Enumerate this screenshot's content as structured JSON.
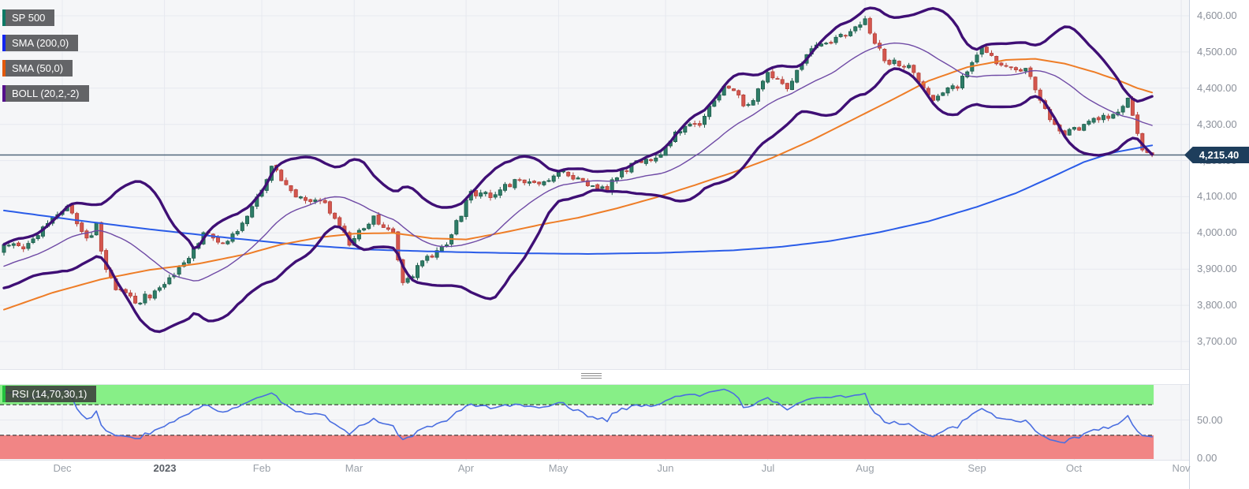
{
  "legend": {
    "items": [
      {
        "id": "sp500",
        "label": "SP 500",
        "color": "#0d7a66"
      },
      {
        "id": "sma200",
        "label": "SMA (200,0)",
        "color": "#1326f0"
      },
      {
        "id": "sma50",
        "label": "SMA (50,0)",
        "color": "#e2590a"
      },
      {
        "id": "boll",
        "label": "BOLL (20,2,-2)",
        "color": "#55108d"
      }
    ]
  },
  "rsi_legend": {
    "label": "RSI (14,70,30,1)",
    "color": "#23c13e"
  },
  "price_tag": {
    "label": "4,215.40",
    "value": 4215.4
  },
  "chart_data": {
    "type": "candlestick",
    "symbol": "SP 500",
    "timeframe": "daily",
    "indicators": [
      "SMA (200,0)",
      "SMA (50,0)",
      "BOLL (20,2,-2)",
      "RSI (14,70,30,1)"
    ],
    "x_axis": {
      "months": [
        {
          "label": "Dec",
          "d": 12
        },
        {
          "label": "2023",
          "d": 33,
          "bold": true
        },
        {
          "label": "Feb",
          "d": 53
        },
        {
          "label": "Mar",
          "d": 72
        },
        {
          "label": "Apr",
          "d": 95
        },
        {
          "label": "May",
          "d": 114
        },
        {
          "label": "Jun",
          "d": 136
        },
        {
          "label": "Jul",
          "d": 157
        },
        {
          "label": "Aug",
          "d": 177
        },
        {
          "label": "Sep",
          "d": 200
        },
        {
          "label": "Oct",
          "d": 220
        },
        {
          "label": "Nov",
          "d": 242
        }
      ]
    },
    "main": {
      "yticks": [
        {
          "v": 4600,
          "label": "4,600.00"
        },
        {
          "v": 4500,
          "label": "4,500.00"
        },
        {
          "v": 4400,
          "label": "4,400.00"
        },
        {
          "v": 4300,
          "label": "4,300.00"
        },
        {
          "v": 4200,
          "label": "4,200.00"
        },
        {
          "v": 4100,
          "label": "4,100.00"
        },
        {
          "v": 4000,
          "label": "4,000.00"
        },
        {
          "v": 3900,
          "label": "3,900.00"
        },
        {
          "v": 3800,
          "label": "3,800.00"
        },
        {
          "v": 3700,
          "label": "3,700.00"
        }
      ],
      "last_price": 4215.4,
      "leadin": {
        "from": 3830,
        "to": 3958,
        "days": 25
      },
      "close_anchors": [
        [
          0,
          3958
        ],
        [
          4,
          3965
        ],
        [
          9,
          4026
        ],
        [
          13,
          4072
        ],
        [
          16,
          3999
        ],
        [
          18,
          3990
        ],
        [
          19,
          4020
        ],
        [
          21,
          3895
        ],
        [
          23,
          3852
        ],
        [
          27,
          3810
        ],
        [
          32,
          3840
        ],
        [
          36,
          3895
        ],
        [
          41,
          3999
        ],
        [
          46,
          3973
        ],
        [
          51,
          4071
        ],
        [
          55,
          4180
        ],
        [
          61,
          4090
        ],
        [
          66,
          4079
        ],
        [
          71,
          3970
        ],
        [
          76,
          4046
        ],
        [
          80,
          3992
        ],
        [
          82,
          3855
        ],
        [
          86,
          3917
        ],
        [
          91,
          3971
        ],
        [
          96,
          4109
        ],
        [
          100,
          4105
        ],
        [
          105,
          4138
        ],
        [
          110,
          4134
        ],
        [
          115,
          4169
        ],
        [
          119,
          4136
        ],
        [
          124,
          4124
        ],
        [
          129,
          4192
        ],
        [
          134,
          4205
        ],
        [
          138,
          4282
        ],
        [
          143,
          4299
        ],
        [
          148,
          4410
        ],
        [
          153,
          4348
        ],
        [
          157,
          4450
        ],
        [
          161,
          4399
        ],
        [
          166,
          4505
        ],
        [
          171,
          4536
        ],
        [
          175,
          4562
        ],
        [
          177,
          4589
        ],
        [
          181,
          4478
        ],
        [
          186,
          4464
        ],
        [
          191,
          4370
        ],
        [
          196,
          4406
        ],
        [
          201,
          4516
        ],
        [
          205,
          4457
        ],
        [
          210,
          4450
        ],
        [
          215,
          4320
        ],
        [
          218,
          4274
        ],
        [
          220,
          4288
        ],
        [
          224,
          4309
        ],
        [
          229,
          4328
        ],
        [
          231,
          4373
        ],
        [
          234,
          4224
        ],
        [
          235,
          4217
        ],
        [
          236,
          4215.4
        ]
      ],
      "sma200_anchors": [
        [
          0,
          4062
        ],
        [
          15,
          4035
        ],
        [
          30,
          4010
        ],
        [
          45,
          3988
        ],
        [
          60,
          3968
        ],
        [
          75,
          3954
        ],
        [
          90,
          3948
        ],
        [
          105,
          3944
        ],
        [
          120,
          3942
        ],
        [
          135,
          3945
        ],
        [
          150,
          3952
        ],
        [
          160,
          3962
        ],
        [
          170,
          3978
        ],
        [
          180,
          4002
        ],
        [
          190,
          4032
        ],
        [
          200,
          4072
        ],
        [
          208,
          4110
        ],
        [
          215,
          4152
        ],
        [
          222,
          4196
        ],
        [
          228,
          4222
        ],
        [
          236,
          4242
        ]
      ],
      "sma50_anchors": [
        [
          0,
          3788
        ],
        [
          10,
          3835
        ],
        [
          20,
          3872
        ],
        [
          30,
          3898
        ],
        [
          40,
          3915
        ],
        [
          50,
          3942
        ],
        [
          57,
          3968
        ],
        [
          65,
          3988
        ],
        [
          72,
          3998
        ],
        [
          80,
          4000
        ],
        [
          88,
          3985
        ],
        [
          95,
          3982
        ],
        [
          103,
          4002
        ],
        [
          110,
          4022
        ],
        [
          118,
          4042
        ],
        [
          126,
          4068
        ],
        [
          134,
          4098
        ],
        [
          142,
          4132
        ],
        [
          150,
          4168
        ],
        [
          158,
          4208
        ],
        [
          166,
          4256
        ],
        [
          174,
          4310
        ],
        [
          182,
          4364
        ],
        [
          190,
          4420
        ],
        [
          198,
          4458
        ],
        [
          206,
          4478
        ],
        [
          212,
          4481
        ],
        [
          218,
          4468
        ],
        [
          224,
          4445
        ],
        [
          229,
          4422
        ],
        [
          233,
          4400
        ],
        [
          236,
          4388
        ]
      ],
      "boll": {
        "period": 20,
        "dev_up": 2,
        "dev_down": -2
      }
    },
    "rsi": {
      "period": 14,
      "upper_level": 70,
      "lower_level": 30,
      "yticks": [
        {
          "v": 50,
          "label": "50.00"
        },
        {
          "v": 0,
          "label": "0.00"
        }
      ]
    },
    "colors": {
      "candle_up": "#2e7d68",
      "candle_up_border": "#1d5c4a",
      "candle_down": "#d4564e",
      "candle_down_border": "#b5423a",
      "sma200": "#2a5ce8",
      "sma50": "#ee7d27",
      "boll_outer": "#3f0f75",
      "boll_mid": "#6f4aa5",
      "rsi_line": "#4a6ee0",
      "rsi_upper_band": "#87ef87",
      "rsi_lower_band": "#f18585",
      "band_dash": "#1c1c1c",
      "price_line": "#50677c",
      "tag_bg": "#1e3e5c",
      "grid": "#e6e9ef",
      "plot_bg": "#f5f6f8"
    }
  }
}
